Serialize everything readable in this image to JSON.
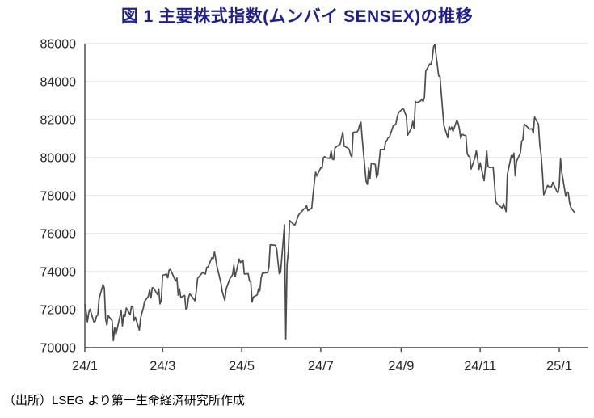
{
  "title": "図 1 主要株式指数(ムンバイ SENSEX)の推移",
  "source_note": "（出所）LSEG より第一生命経済研究所作成",
  "colors": {
    "title_text": "#1F1F8F",
    "axis_text": "#262626",
    "axis_line": "#404040",
    "gridline": "#D9D9D9",
    "series_line": "#4D4D4D",
    "background": "#FFFFFF"
  },
  "chart_data": {
    "type": "line",
    "title": "図 1 主要株式指数(ムンバイ SENSEX)の推移",
    "xlabel": "",
    "ylabel": "",
    "legend": "none",
    "grid": "horizontal",
    "ylim": [
      70000,
      86000
    ],
    "ytick_step": 2000,
    "yticks": [
      "70000",
      "72000",
      "74000",
      "76000",
      "78000",
      "80000",
      "82000",
      "84000",
      "86000"
    ],
    "xticks": [
      {
        "date": "2024-01-01",
        "label": "24/1"
      },
      {
        "date": "2024-03-01",
        "label": "24/3"
      },
      {
        "date": "2024-05-01",
        "label": "24/5"
      },
      {
        "date": "2024-07-01",
        "label": "24/7"
      },
      {
        "date": "2024-09-01",
        "label": "24/9"
      },
      {
        "date": "2024-11-01",
        "label": "24/11"
      },
      {
        "date": "2025-01-01",
        "label": "25/1"
      }
    ],
    "series": [
      {
        "name": "SENSEX",
        "points": [
          [
            "2024-01-01",
            72272
          ],
          [
            "2024-01-02",
            71892
          ],
          [
            "2024-01-03",
            71357
          ],
          [
            "2024-01-04",
            71847
          ],
          [
            "2024-01-05",
            72026
          ],
          [
            "2024-01-08",
            71355
          ],
          [
            "2024-01-09",
            71386
          ],
          [
            "2024-01-10",
            71658
          ],
          [
            "2024-01-11",
            71721
          ],
          [
            "2024-01-12",
            72568
          ],
          [
            "2024-01-15",
            73328
          ],
          [
            "2024-01-16",
            73129
          ],
          [
            "2024-01-17",
            71501
          ],
          [
            "2024-01-18",
            71187
          ],
          [
            "2024-01-19",
            71684
          ],
          [
            "2024-01-22",
            71423
          ],
          [
            "2024-01-23",
            70371
          ],
          [
            "2024-01-24",
            71060
          ],
          [
            "2024-01-25",
            70701
          ],
          [
            "2024-01-29",
            71941
          ],
          [
            "2024-01-30",
            71140
          ],
          [
            "2024-01-31",
            71752
          ],
          [
            "2024-02-01",
            71645
          ],
          [
            "2024-02-02",
            72086
          ],
          [
            "2024-02-05",
            71731
          ],
          [
            "2024-02-06",
            72186
          ],
          [
            "2024-02-07",
            72152
          ],
          [
            "2024-02-08",
            71428
          ],
          [
            "2024-02-09",
            71595
          ],
          [
            "2024-02-12",
            70923
          ],
          [
            "2024-02-13",
            71555
          ],
          [
            "2024-02-14",
            71833
          ],
          [
            "2024-02-15",
            72050
          ],
          [
            "2024-02-16",
            72426
          ],
          [
            "2024-02-19",
            72708
          ],
          [
            "2024-02-20",
            73057
          ],
          [
            "2024-02-21",
            72623
          ],
          [
            "2024-02-22",
            73158
          ],
          [
            "2024-02-23",
            73142
          ],
          [
            "2024-02-26",
            72790
          ],
          [
            "2024-02-27",
            73095
          ],
          [
            "2024-02-28",
            72304
          ],
          [
            "2024-02-29",
            72500
          ],
          [
            "2024-03-01",
            73806
          ],
          [
            "2024-03-04",
            73872
          ],
          [
            "2024-03-05",
            73677
          ],
          [
            "2024-03-06",
            74086
          ],
          [
            "2024-03-07",
            74119
          ],
          [
            "2024-03-11",
            73503
          ],
          [
            "2024-03-12",
            73668
          ],
          [
            "2024-03-13",
            72761
          ],
          [
            "2024-03-14",
            73097
          ],
          [
            "2024-03-15",
            72643
          ],
          [
            "2024-03-18",
            72748
          ],
          [
            "2024-03-19",
            72012
          ],
          [
            "2024-03-20",
            72102
          ],
          [
            "2024-03-21",
            72641
          ],
          [
            "2024-03-22",
            72831
          ],
          [
            "2024-03-26",
            72470
          ],
          [
            "2024-03-27",
            72996
          ],
          [
            "2024-03-28",
            73651
          ],
          [
            "2024-04-01",
            73968
          ],
          [
            "2024-04-02",
            73904
          ],
          [
            "2024-04-03",
            73877
          ],
          [
            "2024-04-04",
            74228
          ],
          [
            "2024-04-05",
            74248
          ],
          [
            "2024-04-08",
            74742
          ],
          [
            "2024-04-09",
            74683
          ],
          [
            "2024-04-10",
            75038
          ],
          [
            "2024-04-12",
            74245
          ],
          [
            "2024-04-15",
            73400
          ],
          [
            "2024-04-16",
            72944
          ],
          [
            "2024-04-18",
            72489
          ],
          [
            "2024-04-19",
            73088
          ],
          [
            "2024-04-22",
            73649
          ],
          [
            "2024-04-23",
            73738
          ],
          [
            "2024-04-24",
            73853
          ],
          [
            "2024-04-25",
            74339
          ],
          [
            "2024-04-26",
            73730
          ],
          [
            "2024-04-29",
            74671
          ],
          [
            "2024-04-30",
            74482
          ],
          [
            "2024-05-02",
            74611
          ],
          [
            "2024-05-03",
            73878
          ],
          [
            "2024-05-06",
            73895
          ],
          [
            "2024-05-07",
            73512
          ],
          [
            "2024-05-08",
            73466
          ],
          [
            "2024-05-09",
            72404
          ],
          [
            "2024-05-10",
            72664
          ],
          [
            "2024-05-13",
            72776
          ],
          [
            "2024-05-14",
            73105
          ],
          [
            "2024-05-15",
            72987
          ],
          [
            "2024-05-16",
            73663
          ],
          [
            "2024-05-17",
            73917
          ],
          [
            "2024-05-21",
            73953
          ],
          [
            "2024-05-22",
            74221
          ],
          [
            "2024-05-23",
            75418
          ],
          [
            "2024-05-24",
            75410
          ],
          [
            "2024-05-27",
            75391
          ],
          [
            "2024-05-28",
            75170
          ],
          [
            "2024-05-29",
            74502
          ],
          [
            "2024-05-30",
            73885
          ],
          [
            "2024-05-31",
            73961
          ],
          [
            "2024-06-03",
            76469
          ],
          [
            "2024-06-04",
            70450
          ],
          [
            "2024-06-05",
            74382
          ],
          [
            "2024-06-06",
            75074
          ],
          [
            "2024-06-07",
            76693
          ],
          [
            "2024-06-10",
            76490
          ],
          [
            "2024-06-11",
            76456
          ],
          [
            "2024-06-12",
            76607
          ],
          [
            "2024-06-13",
            76811
          ],
          [
            "2024-06-14",
            76993
          ],
          [
            "2024-06-18",
            77301
          ],
          [
            "2024-06-19",
            77337
          ],
          [
            "2024-06-20",
            77479
          ],
          [
            "2024-06-21",
            77210
          ],
          [
            "2024-06-24",
            77341
          ],
          [
            "2024-06-25",
            78053
          ],
          [
            "2024-06-26",
            78674
          ],
          [
            "2024-06-27",
            79243
          ],
          [
            "2024-06-28",
            79033
          ],
          [
            "2024-07-01",
            79476
          ],
          [
            "2024-07-02",
            79441
          ],
          [
            "2024-07-03",
            79987
          ],
          [
            "2024-07-04",
            80050
          ],
          [
            "2024-07-05",
            79997
          ],
          [
            "2024-07-08",
            79960
          ],
          [
            "2024-07-09",
            80351
          ],
          [
            "2024-07-10",
            79925
          ],
          [
            "2024-07-11",
            79897
          ],
          [
            "2024-07-12",
            80519
          ],
          [
            "2024-07-15",
            80665
          ],
          [
            "2024-07-16",
            80716
          ],
          [
            "2024-07-18",
            81343
          ],
          [
            "2024-07-19",
            80604
          ],
          [
            "2024-07-22",
            80502
          ],
          [
            "2024-07-23",
            80429
          ],
          [
            "2024-07-24",
            80149
          ],
          [
            "2024-07-25",
            80040
          ],
          [
            "2024-07-26",
            81333
          ],
          [
            "2024-07-29",
            81356
          ],
          [
            "2024-07-30",
            81455
          ],
          [
            "2024-07-31",
            81741
          ],
          [
            "2024-08-01",
            81867
          ],
          [
            "2024-08-02",
            80982
          ],
          [
            "2024-08-05",
            78759
          ],
          [
            "2024-08-06",
            78593
          ],
          [
            "2024-08-07",
            79468
          ],
          [
            "2024-08-08",
            78886
          ],
          [
            "2024-08-09",
            79706
          ],
          [
            "2024-08-12",
            79648
          ],
          [
            "2024-08-13",
            78956
          ],
          [
            "2024-08-14",
            79105
          ],
          [
            "2024-08-16",
            80437
          ],
          [
            "2024-08-19",
            80425
          ],
          [
            "2024-08-20",
            80803
          ],
          [
            "2024-08-21",
            80905
          ],
          [
            "2024-08-22",
            81053
          ],
          [
            "2024-08-23",
            81086
          ],
          [
            "2024-08-26",
            81698
          ],
          [
            "2024-08-27",
            81711
          ],
          [
            "2024-08-28",
            81785
          ],
          [
            "2024-08-29",
            82134
          ],
          [
            "2024-08-30",
            82365
          ],
          [
            "2024-09-02",
            82560
          ],
          [
            "2024-09-03",
            82555
          ],
          [
            "2024-09-04",
            82352
          ],
          [
            "2024-09-05",
            82201
          ],
          [
            "2024-09-06",
            81184
          ],
          [
            "2024-09-09",
            81559
          ],
          [
            "2024-09-10",
            81921
          ],
          [
            "2024-09-11",
            81523
          ],
          [
            "2024-09-12",
            82963
          ],
          [
            "2024-09-13",
            82891
          ],
          [
            "2024-09-16",
            82988
          ],
          [
            "2024-09-17",
            83079
          ],
          [
            "2024-09-18",
            82948
          ],
          [
            "2024-09-19",
            83185
          ],
          [
            "2024-09-20",
            84544
          ],
          [
            "2024-09-23",
            84928
          ],
          [
            "2024-09-24",
            84914
          ],
          [
            "2024-09-25",
            85170
          ],
          [
            "2024-09-26",
            85836
          ],
          [
            "2024-09-27",
            85950
          ],
          [
            "2024-09-30",
            84300
          ],
          [
            "2024-10-01",
            84266
          ],
          [
            "2024-10-03",
            82497
          ],
          [
            "2024-10-04",
            81688
          ],
          [
            "2024-10-07",
            81050
          ],
          [
            "2024-10-08",
            81635
          ],
          [
            "2024-10-09",
            81467
          ],
          [
            "2024-10-10",
            81611
          ],
          [
            "2024-10-11",
            81381
          ],
          [
            "2024-10-14",
            81973
          ],
          [
            "2024-10-15",
            81820
          ],
          [
            "2024-10-16",
            81501
          ],
          [
            "2024-10-17",
            81007
          ],
          [
            "2024-10-18",
            81225
          ],
          [
            "2024-10-21",
            81151
          ],
          [
            "2024-10-22",
            80221
          ],
          [
            "2024-10-23",
            80082
          ],
          [
            "2024-10-24",
            80065
          ],
          [
            "2024-10-25",
            79402
          ],
          [
            "2024-10-28",
            80005
          ],
          [
            "2024-10-29",
            80369
          ],
          [
            "2024-10-30",
            79942
          ],
          [
            "2024-10-31",
            79389
          ],
          [
            "2024-11-01",
            79724
          ],
          [
            "2024-11-04",
            78782
          ],
          [
            "2024-11-05",
            79476
          ],
          [
            "2024-11-06",
            80378
          ],
          [
            "2024-11-07",
            79542
          ],
          [
            "2024-11-08",
            79486
          ],
          [
            "2024-11-11",
            79496
          ],
          [
            "2024-11-12",
            78675
          ],
          [
            "2024-11-13",
            77691
          ],
          [
            "2024-11-14",
            77580
          ],
          [
            "2024-11-18",
            77339
          ],
          [
            "2024-11-19",
            77578
          ],
          [
            "2024-11-21",
            77156
          ],
          [
            "2024-11-22",
            79117
          ],
          [
            "2024-11-25",
            80109
          ],
          [
            "2024-11-26",
            80004
          ],
          [
            "2024-11-27",
            80234
          ],
          [
            "2024-11-28",
            79044
          ],
          [
            "2024-11-29",
            79803
          ],
          [
            "2024-12-02",
            80248
          ],
          [
            "2024-12-03",
            80845
          ],
          [
            "2024-12-04",
            80956
          ],
          [
            "2024-12-05",
            81766
          ],
          [
            "2024-12-06",
            81709
          ],
          [
            "2024-12-09",
            81508
          ],
          [
            "2024-12-10",
            81510
          ],
          [
            "2024-12-11",
            81526
          ],
          [
            "2024-12-12",
            81290
          ],
          [
            "2024-12-13",
            82133
          ],
          [
            "2024-12-16",
            81748
          ],
          [
            "2024-12-17",
            80684
          ],
          [
            "2024-12-18",
            80182
          ],
          [
            "2024-12-19",
            79218
          ],
          [
            "2024-12-20",
            78042
          ],
          [
            "2024-12-23",
            78540
          ],
          [
            "2024-12-24",
            78473
          ],
          [
            "2024-12-26",
            78472
          ],
          [
            "2024-12-27",
            78699
          ],
          [
            "2024-12-30",
            78248
          ],
          [
            "2024-12-31",
            78139
          ],
          [
            "2025-01-01",
            78507
          ],
          [
            "2025-01-02",
            79944
          ],
          [
            "2025-01-03",
            79223
          ],
          [
            "2025-01-06",
            77965
          ],
          [
            "2025-01-07",
            78199
          ],
          [
            "2025-01-08",
            78148
          ],
          [
            "2025-01-09",
            77620
          ],
          [
            "2025-01-10",
            77378
          ],
          [
            "2025-01-13",
            77100
          ]
        ]
      }
    ]
  }
}
